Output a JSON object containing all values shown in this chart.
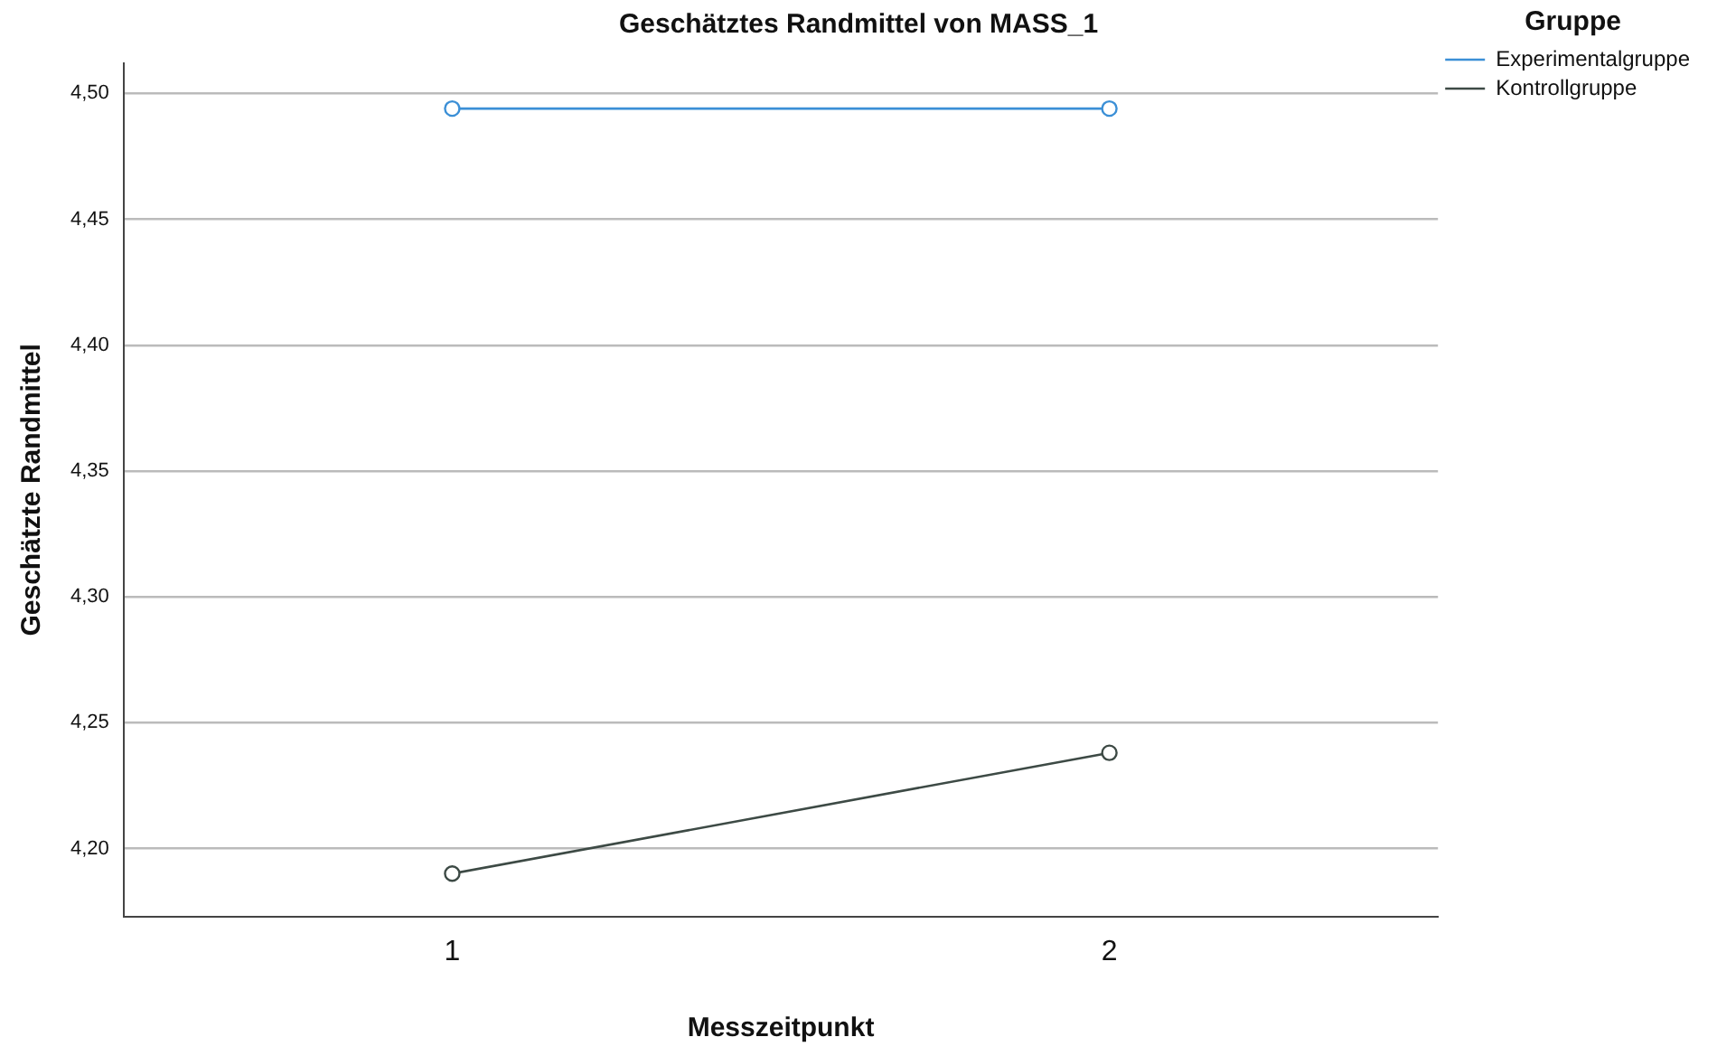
{
  "chart_data": {
    "type": "line",
    "title": "Geschätztes Randmittel von MASS_1",
    "xlabel": "Messzeitpunkt",
    "ylabel": "Geschätzte Randmittel",
    "legend_title": "Gruppe",
    "categories": [
      "1",
      "2"
    ],
    "series": [
      {
        "name": "Experimentalgruppe",
        "color": "#3b8fd6",
        "values": [
          4.494,
          4.494
        ]
      },
      {
        "name": "Kontrollgruppe",
        "color": "#3d4a45",
        "values": [
          4.19,
          4.238
        ]
      }
    ],
    "ylim": [
      4.173,
      4.512
    ],
    "yticks": [
      {
        "value": 4.2,
        "label": "4,20"
      },
      {
        "value": 4.25,
        "label": "4,25"
      },
      {
        "value": 4.3,
        "label": "4,30"
      },
      {
        "value": 4.35,
        "label": "4,35"
      },
      {
        "value": 4.4,
        "label": "4,40"
      },
      {
        "value": 4.45,
        "label": "4,45"
      },
      {
        "value": 4.5,
        "label": "4,50"
      }
    ],
    "grid": "y",
    "legend": "top right",
    "marker": "circle",
    "line_style": "solid"
  }
}
